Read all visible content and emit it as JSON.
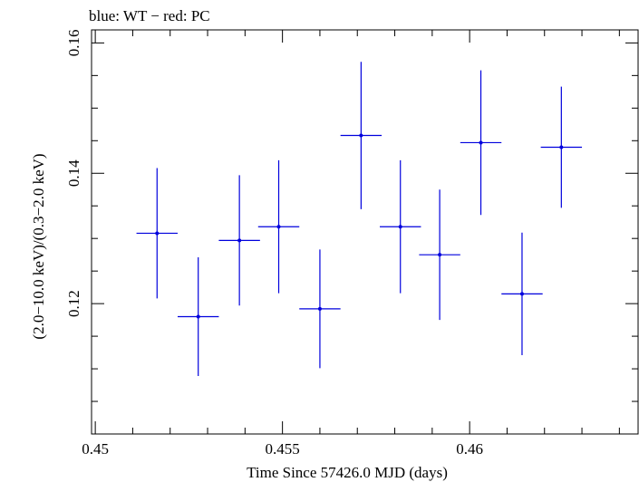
{
  "chart_data": {
    "type": "scatter",
    "title": "blue: WT − red: PC",
    "xlabel": "Time Since 57426.0 MJD (days)",
    "ylabel": "(2.0−10.0 keV)/(0.3−2.0 keV)",
    "xlim": [
      0.4499,
      0.4645
    ],
    "ylim": [
      0.1,
      0.162
    ],
    "x_ticks": [
      0.45,
      0.455,
      0.46
    ],
    "x_tick_labels": [
      "0.45",
      "0.455",
      "0.46"
    ],
    "y_ticks": [
      0.12,
      0.14,
      0.16
    ],
    "y_tick_labels": [
      "0.12",
      "0.14",
      "0.16"
    ],
    "grid": false,
    "colors": {
      "WT": "#0000dd",
      "PC": "#dd0000"
    },
    "series": [
      {
        "mode": "WT",
        "color": "#0000dd",
        "points": [
          {
            "x": 0.45165,
            "xerr": 0.00055,
            "y": 0.1308,
            "yerr": 0.01
          },
          {
            "x": 0.45275,
            "xerr": 0.00055,
            "y": 0.118,
            "yerr": 0.0091
          },
          {
            "x": 0.45385,
            "xerr": 0.00055,
            "y": 0.1297,
            "yerr": 0.01
          },
          {
            "x": 0.4549,
            "xerr": 0.00055,
            "y": 0.1318,
            "yerr": 0.0102
          },
          {
            "x": 0.456,
            "xerr": 0.00055,
            "y": 0.1192,
            "yerr": 0.0091
          },
          {
            "x": 0.4571,
            "xerr": 0.00055,
            "y": 0.1458,
            "yerr": 0.0113
          },
          {
            "x": 0.45815,
            "xerr": 0.00055,
            "y": 0.1318,
            "yerr": 0.0102
          },
          {
            "x": 0.4592,
            "xerr": 0.00055,
            "y": 0.1275,
            "yerr": 0.01
          },
          {
            "x": 0.4603,
            "xerr": 0.00055,
            "y": 0.1447,
            "yerr": 0.0111
          },
          {
            "x": 0.4614,
            "xerr": 0.00055,
            "y": 0.1215,
            "yerr": 0.0094
          },
          {
            "x": 0.46245,
            "xerr": 0.00055,
            "y": 0.144,
            "yerr": 0.0093
          }
        ]
      }
    ]
  }
}
